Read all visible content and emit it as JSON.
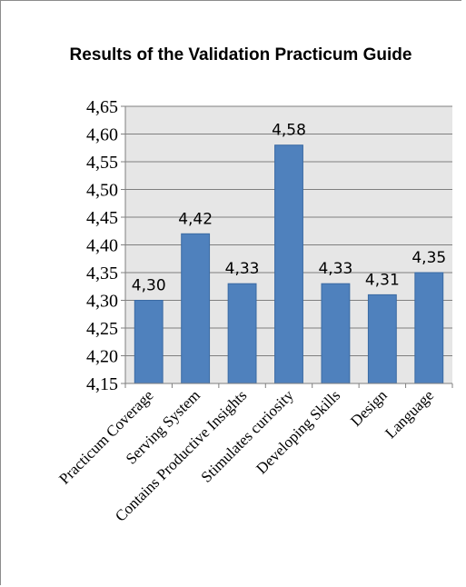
{
  "chart_data": {
    "type": "bar",
    "title": "Results of the Validation  Practicum Guide",
    "categories": [
      "Practicum Coverage",
      "Serving System",
      "Contains Productive Insights",
      "Stimulates curiosity",
      "Developing Skills",
      "Design",
      "Language"
    ],
    "values": [
      4.3,
      4.42,
      4.33,
      4.58,
      4.33,
      4.31,
      4.35
    ],
    "data_labels": [
      "4,30",
      "4,42",
      "4,33",
      "4,58",
      "4,33",
      "4,31",
      "4,35"
    ],
    "y_ticks": [
      "4,15",
      "4,20",
      "4,25",
      "4,30",
      "4,35",
      "4,40",
      "4,45",
      "4,50",
      "4,55",
      "4,60",
      "4,65"
    ],
    "ylim": [
      4.15,
      4.65
    ],
    "xlabel": "",
    "ylabel": "",
    "grid": true,
    "legend": "none",
    "colors": {
      "bar": "#4f81bd",
      "bar_stroke": "#3a6aa3",
      "plot_bg": "#e6e6e6",
      "grid": "#7f7f7f"
    }
  }
}
